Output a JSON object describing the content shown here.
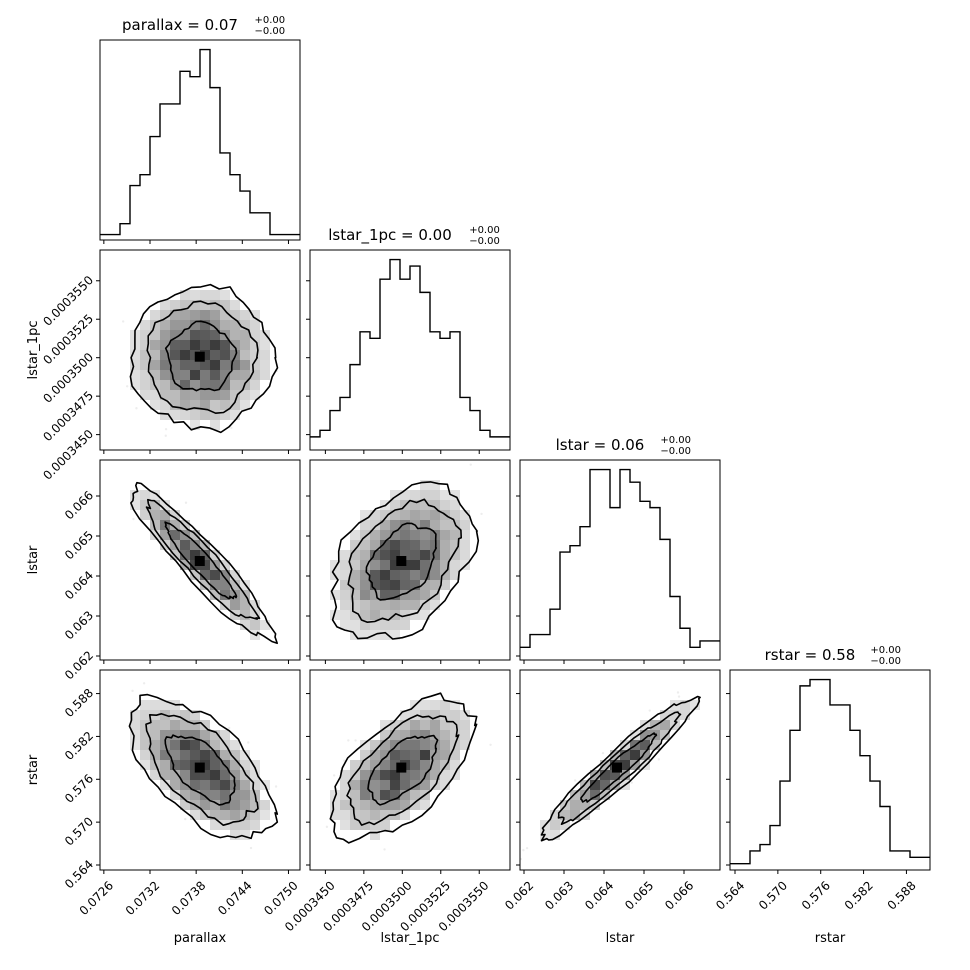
{
  "chart_data": {
    "type": "corner",
    "parameters": [
      "parallax",
      "lstar_1pc",
      "lstar",
      "rstar"
    ],
    "titles": [
      {
        "param": "parallax",
        "text": "parallax = 0.07",
        "sup": "+0.00",
        "sub": "−0.00"
      },
      {
        "param": "lstar_1pc",
        "text": "lstar_1pc = 0.00",
        "sup": "+0.00",
        "sub": "−0.00"
      },
      {
        "param": "lstar",
        "text": "lstar = 0.06",
        "sup": "+0.00",
        "sub": "−0.00"
      },
      {
        "param": "rstar",
        "text": "rstar = 0.58",
        "sup": "+0.00",
        "sub": "−0.00"
      }
    ],
    "axis_labels": {
      "x": [
        "parallax",
        "lstar_1pc",
        "lstar",
        "rstar"
      ],
      "y": [
        "",
        "lstar_1pc",
        "lstar",
        "rstar"
      ]
    },
    "ranges": [
      [
        0.07255,
        0.07515
      ],
      [
        0.000344,
        0.000357
      ],
      [
        0.0619,
        0.0669
      ],
      [
        0.5633,
        0.5913
      ]
    ],
    "ticks": [
      [
        0.0726,
        0.0732,
        0.0738,
        0.0744,
        0.075
      ],
      [
        0.000345,
        0.0003475,
        0.00035,
        0.0003525,
        0.000355
      ],
      [
        0.062,
        0.063,
        0.064,
        0.065,
        0.066
      ],
      [
        0.564,
        0.57,
        0.576,
        0.582,
        0.588
      ]
    ],
    "tick_labels": [
      [
        "0.0726",
        "0.0732",
        "0.0738",
        "0.0744",
        "0.0750"
      ],
      [
        "0.0003450",
        "0.0003475",
        "0.0003500",
        "0.0003525",
        "0.0003550"
      ],
      [
        "0.062",
        "0.063",
        "0.064",
        "0.065",
        "0.066"
      ],
      [
        "0.564",
        "0.570",
        "0.576",
        "0.582",
        "0.588"
      ]
    ],
    "histograms": [
      [
        1,
        1,
        3,
        10,
        12,
        19,
        25,
        25,
        31,
        30,
        35,
        28,
        16,
        12,
        9,
        5,
        5,
        1,
        1,
        1
      ],
      [
        2,
        3,
        6,
        8,
        13,
        18,
        17,
        26,
        29,
        26,
        28,
        24,
        18,
        17,
        18,
        8,
        6,
        3,
        2,
        2
      ],
      [
        2,
        4,
        4,
        8,
        17,
        18,
        21,
        30,
        30,
        24,
        30,
        28,
        25,
        24,
        19,
        10,
        5,
        2,
        3,
        3
      ],
      [
        1,
        1,
        3,
        4,
        7,
        14,
        22,
        29,
        30,
        30,
        26,
        26,
        22,
        18,
        14,
        10,
        3,
        3,
        2,
        2
      ]
    ],
    "correlations": {
      "1_0": 0.0,
      "2_0": -0.93,
      "2_1": 0.38,
      "3_0": -0.6,
      "3_1": 0.6,
      "3_2": 0.95
    },
    "means": [
      0.07386,
      0.00035,
      0.06435,
      0.5775
    ],
    "sigmas": [
      0.00044,
      2.2e-06,
      0.00092,
      0.0047
    ],
    "grid": false
  }
}
